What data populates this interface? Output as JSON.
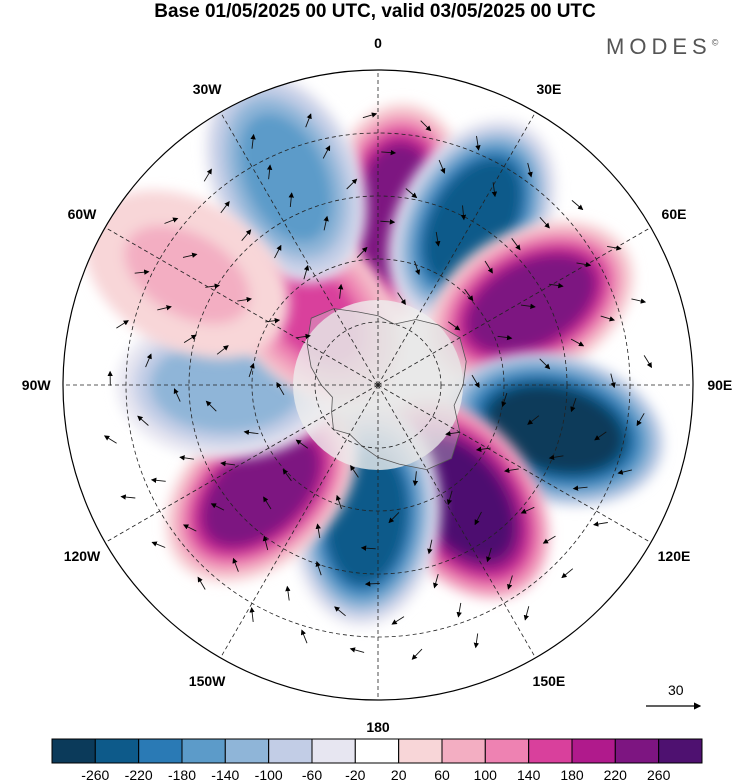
{
  "title": "Base 01/05/2025 00 UTC, valid 03/05/2025 00 UTC",
  "brand": "MODES",
  "brand_mark": "©",
  "longitude_labels": [
    {
      "text": "0",
      "deg": 0
    },
    {
      "text": "30E",
      "deg": 30
    },
    {
      "text": "60E",
      "deg": 60
    },
    {
      "text": "90E",
      "deg": 90
    },
    {
      "text": "120E",
      "deg": 120
    },
    {
      "text": "150E",
      "deg": 150
    },
    {
      "text": "180",
      "deg": 180
    },
    {
      "text": "150W",
      "deg": 210
    },
    {
      "text": "120W",
      "deg": 240
    },
    {
      "text": "90W",
      "deg": 270
    },
    {
      "text": "60W",
      "deg": 300
    },
    {
      "text": "30W",
      "deg": 330
    }
  ],
  "reference_vector": {
    "label": "30"
  },
  "colorbar": {
    "ticks": [
      "-260",
      "-220",
      "-180",
      "-140",
      "-100",
      "-60",
      "-20",
      "20",
      "60",
      "100",
      "140",
      "180",
      "220",
      "260"
    ],
    "colors": [
      "#0b3a5a",
      "#0d5a8a",
      "#2a7ab5",
      "#5c9bc9",
      "#8fb5d8",
      "#c2cde6",
      "#e7e6f1",
      "#ffffff",
      "#f8d6d8",
      "#f3aec2",
      "#ee82b2",
      "#d9409c",
      "#b01a8c",
      "#7d1581",
      "#4e1170"
    ]
  },
  "anomaly_cells": [
    {
      "lon": 6,
      "r": 0.55,
      "value": 240
    },
    {
      "lon": 30,
      "r": 0.6,
      "value": -260
    },
    {
      "lon": 62,
      "r": 0.55,
      "value": 250
    },
    {
      "lon": 104,
      "r": 0.58,
      "value": -270
    },
    {
      "lon": 144,
      "r": 0.45,
      "value": 260
    },
    {
      "lon": 185,
      "r": 0.42,
      "value": -240
    },
    {
      "lon": 228,
      "r": 0.5,
      "value": 220
    },
    {
      "lon": 270,
      "r": 0.48,
      "value": -140
    },
    {
      "lon": 318,
      "r": 0.33,
      "value": 150
    },
    {
      "lon": 336,
      "r": 0.72,
      "value": -160
    },
    {
      "lon": 300,
      "r": 0.7,
      "value": 60
    }
  ]
}
